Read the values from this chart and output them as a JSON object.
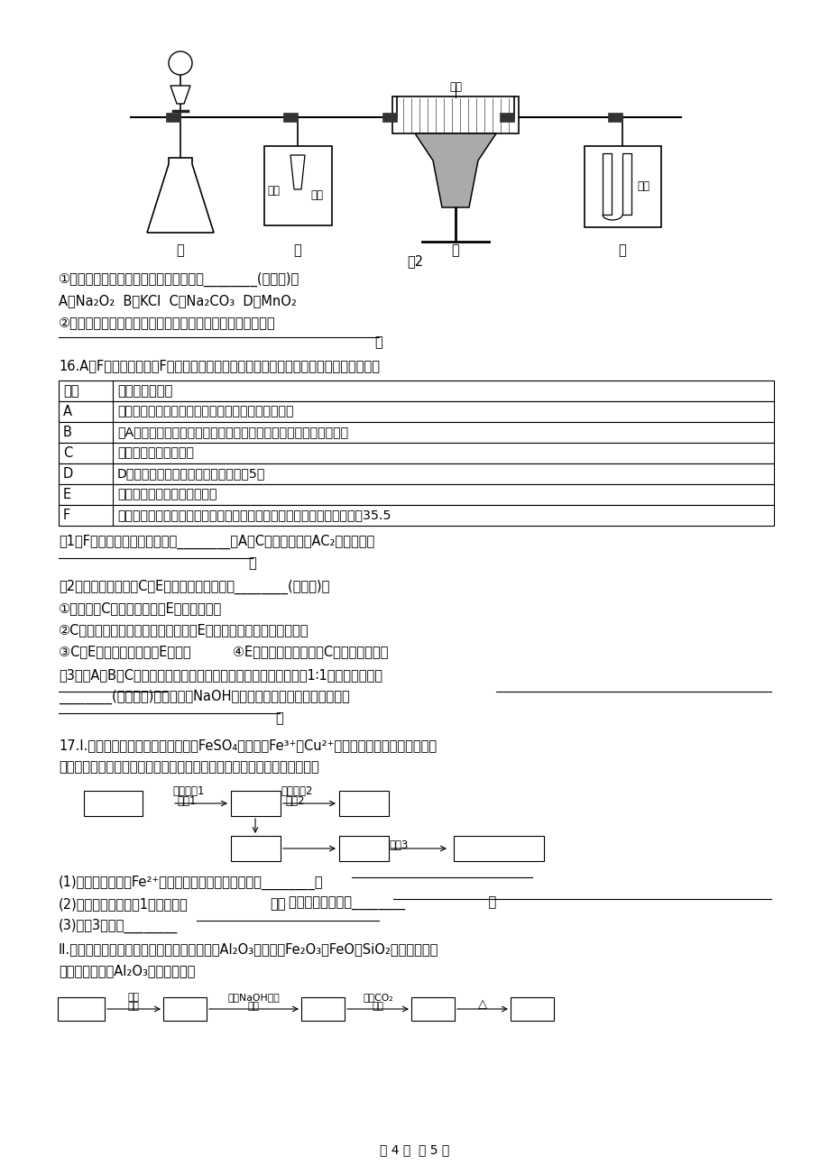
{
  "page_background": "#ffffff",
  "page_width": 9.2,
  "page_height": 13.02,
  "text_color": "#000000",
  "table_headers": [
    "元素",
    "原子结构或性质"
  ],
  "table_rows": [
    [
      "A",
      "其形成的一种同位素原子在考古中可推测化石的年代"
    ],
    [
      "B",
      "与A同周期，其最高价氧化物的水化物无论浓、稀溶液均有强氧化性"
    ],
    [
      "C",
      "地壳中含量最多的元素"
    ],
    [
      "D",
      "D原子的内层电子数是最外层电子数的5倍"
    ],
    [
      "E",
      "其单质主要存在于火山口附近"
    ],
    [
      "F",
      "生活中常见的银白色金属，它有两种常见的氯化物，且相对分子质量相差35.5"
    ]
  ],
  "footer": "第 4 页  共 5 页"
}
